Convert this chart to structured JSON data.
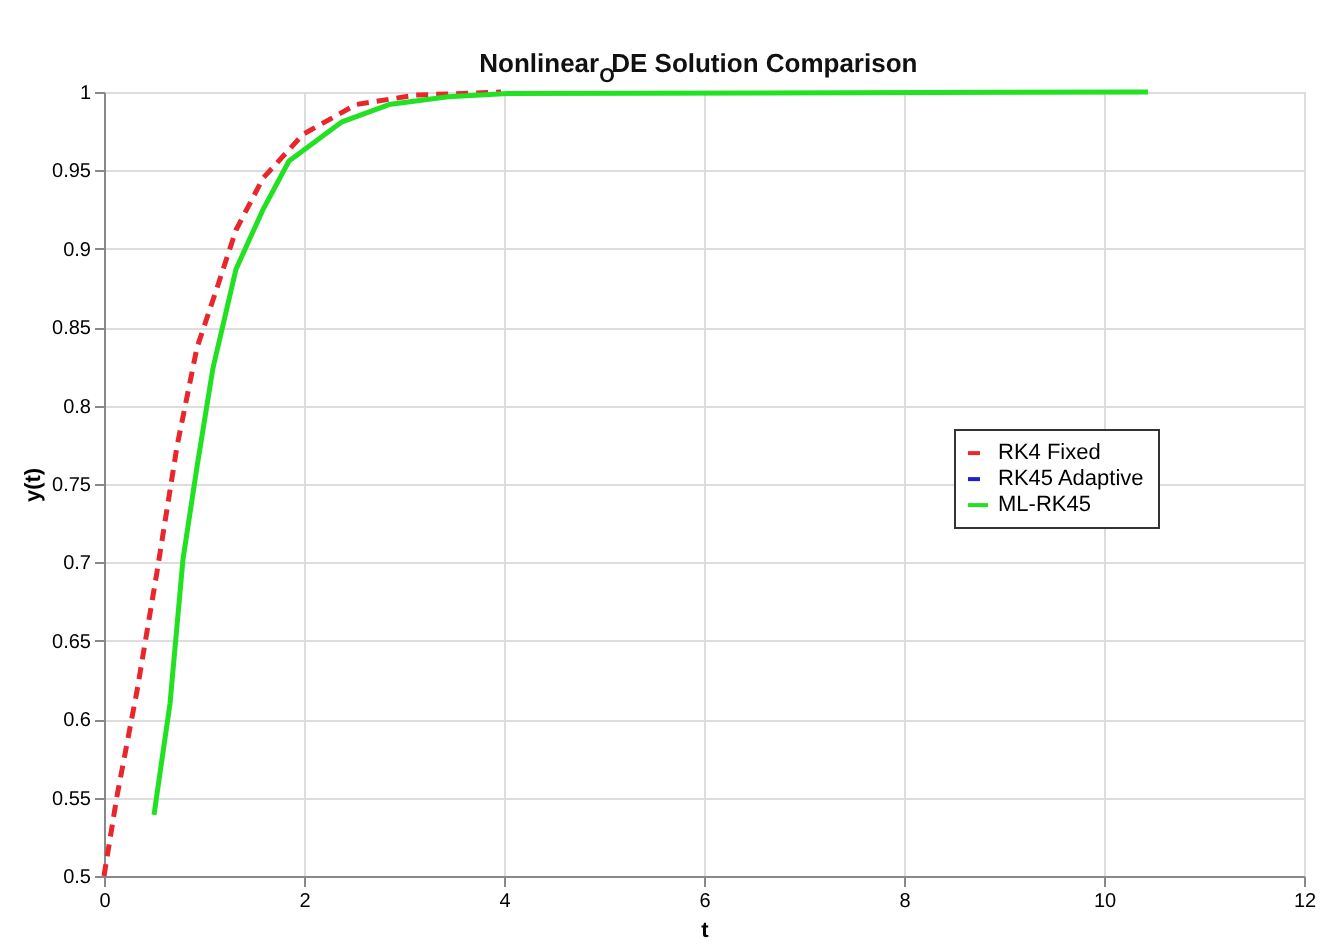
{
  "chart_data": {
    "type": "line",
    "title": "Nonlinear$_{O}$DE Solution Comparison",
    "xlabel": "t",
    "ylabel": "y(t)",
    "xlim": [
      0,
      12
    ],
    "xticks": [
      0,
      2,
      4,
      6,
      8,
      10,
      12
    ],
    "ylim": [
      0.5,
      1
    ],
    "yticks": [
      0.5,
      0.55,
      0.6,
      0.65,
      0.7,
      0.75,
      0.8,
      0.85,
      0.9,
      0.95,
      1
    ],
    "grid": true,
    "legend": "right",
    "marker": "none",
    "series": [
      {
        "name": "RK4 Fixed",
        "color": "#e8262b",
        "line_style": "dashed",
        "x": [
          0,
          0.13,
          0.33,
          0.53,
          0.73,
          0.93,
          1.13,
          1.32,
          1.59,
          1.99,
          2.52,
          3.11,
          3.97
        ],
        "values": [
          0.5,
          0.551,
          0.618,
          0.694,
          0.774,
          0.837,
          0.875,
          0.912,
          0.945,
          0.973,
          0.992,
          0.998,
          1.0
        ]
      },
      {
        "name": "RK45 Adaptive",
        "color": "#1f1fcc",
        "line_style": "dashed"
      },
      {
        "name": "ML-RK45",
        "color": "#22e022",
        "line_style": "solid",
        "x": [
          0.5,
          0.66,
          0.79,
          0.93,
          1.09,
          1.32,
          1.59,
          1.85,
          2.38,
          2.85,
          3.44,
          4.04,
          10.44
        ],
        "values": [
          0.539,
          0.61,
          0.702,
          0.761,
          0.824,
          0.887,
          0.925,
          0.956,
          0.981,
          0.992,
          0.997,
          0.999,
          1.0
        ]
      }
    ]
  }
}
